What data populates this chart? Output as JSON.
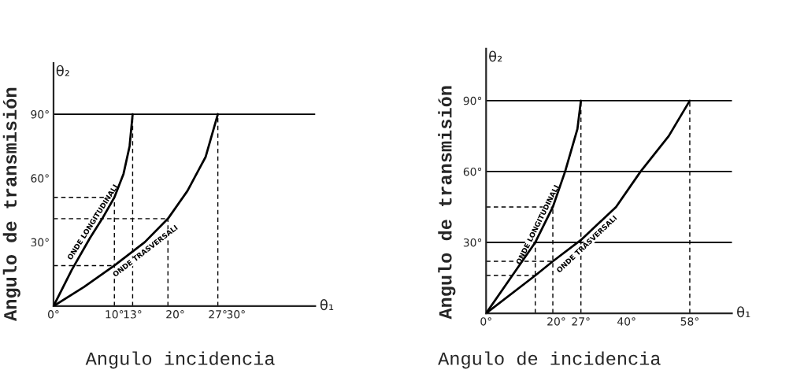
{
  "chart_data": [
    {
      "type": "line",
      "xlabel": "Angulo incidencia",
      "ylabel": "Angulo de transmisión",
      "annotations": [
        "θ₂",
        "θ₁"
      ],
      "xlim": [
        0,
        43
      ],
      "ylim": [
        0,
        114
      ],
      "xticks": [
        {
          "value": 0,
          "label": "0°"
        },
        {
          "value": 10,
          "label": "10°"
        },
        {
          "value": 13,
          "label": "13°"
        },
        {
          "value": 20,
          "label": "20°"
        },
        {
          "value": 27,
          "label": "27°"
        },
        {
          "value": 30,
          "label": "30°"
        }
      ],
      "yticks": [
        {
          "value": 0,
          "label": null
        },
        {
          "value": 30,
          "label": "30°"
        },
        {
          "value": 60,
          "label": "60°"
        },
        {
          "value": 90,
          "label": "90°"
        }
      ],
      "series": [
        {
          "name": "ONDE LONGITUDINALI",
          "color": "#000000",
          "x": [
            0,
            3,
            6,
            8,
            10,
            11.5,
            12.5,
            13
          ],
          "values": [
            0,
            17,
            32,
            41,
            51,
            62,
            75,
            90
          ]
        },
        {
          "name": "ONDE TRASVERSALI",
          "color": "#000000",
          "x": [
            0,
            5,
            10,
            15,
            18.8,
            22,
            25,
            27
          ],
          "values": [
            0,
            9,
            19,
            30,
            41,
            54,
            70,
            90
          ]
        }
      ],
      "ref_lines": [
        {
          "axis": "y",
          "value": 90,
          "line_style": "solid"
        },
        {
          "axis": "x",
          "value": 10,
          "line_style": "dashed"
        },
        {
          "axis": "x",
          "value": 13,
          "line_style": "dashed"
        },
        {
          "axis": "x",
          "value": 18.8,
          "line_style": "dashed"
        },
        {
          "axis": "x",
          "value": 27,
          "line_style": "dashed"
        },
        {
          "axis": "y",
          "value": 19,
          "line_style": "dashed"
        },
        {
          "axis": "y",
          "value": 41,
          "line_style": "dashed"
        },
        {
          "axis": "y",
          "value": 51,
          "line_style": "dashed"
        }
      ],
      "grid": false,
      "legend": false
    },
    {
      "type": "line",
      "xlabel": "Angulo de incidencia",
      "ylabel": "Angulo de transmisión",
      "annotations": [
        "θ₂",
        "θ₁"
      ],
      "xlim": [
        0,
        70
      ],
      "ylim": [
        0,
        112
      ],
      "xticks": [
        {
          "value": 0,
          "label": "0°"
        },
        {
          "value": 20,
          "label": "20°"
        },
        {
          "value": 27,
          "label": "27°"
        },
        {
          "value": 40,
          "label": "40°"
        },
        {
          "value": 58,
          "label": "58°"
        }
      ],
      "yticks": [
        {
          "value": 0,
          "label": null
        },
        {
          "value": 30,
          "label": "30°"
        },
        {
          "value": 60,
          "label": "60°"
        },
        {
          "value": 90,
          "label": "90°"
        }
      ],
      "series": [
        {
          "name": "ONDE LONGITUDINALI",
          "color": "#000000",
          "x": [
            0,
            7,
            14,
            19,
            22.5,
            26,
            27
          ],
          "values": [
            0,
            15,
            30,
            45,
            60,
            78,
            90
          ]
        },
        {
          "name": "ONDE TRASVERSALI",
          "color": "#000000",
          "x": [
            0,
            14,
            19,
            27,
            37,
            44,
            52,
            58
          ],
          "values": [
            0,
            16,
            22,
            31,
            45,
            60,
            75,
            90
          ]
        }
      ],
      "ref_lines": [
        {
          "axis": "y",
          "value": 30,
          "line_style": "solid"
        },
        {
          "axis": "y",
          "value": 60,
          "line_style": "solid"
        },
        {
          "axis": "y",
          "value": 90,
          "line_style": "solid"
        },
        {
          "axis": "x",
          "value": 14,
          "line_style": "dashed"
        },
        {
          "axis": "x",
          "value": 19,
          "line_style": "dashed"
        },
        {
          "axis": "x",
          "value": 27,
          "line_style": "dashed"
        },
        {
          "axis": "x",
          "value": 58,
          "line_style": "dashed"
        },
        {
          "axis": "y",
          "value": 16,
          "line_style": "dashed"
        },
        {
          "axis": "y",
          "value": 22,
          "line_style": "dashed"
        },
        {
          "axis": "y",
          "value": 45,
          "line_style": "dashed"
        }
      ],
      "grid": false,
      "legend": false
    }
  ]
}
